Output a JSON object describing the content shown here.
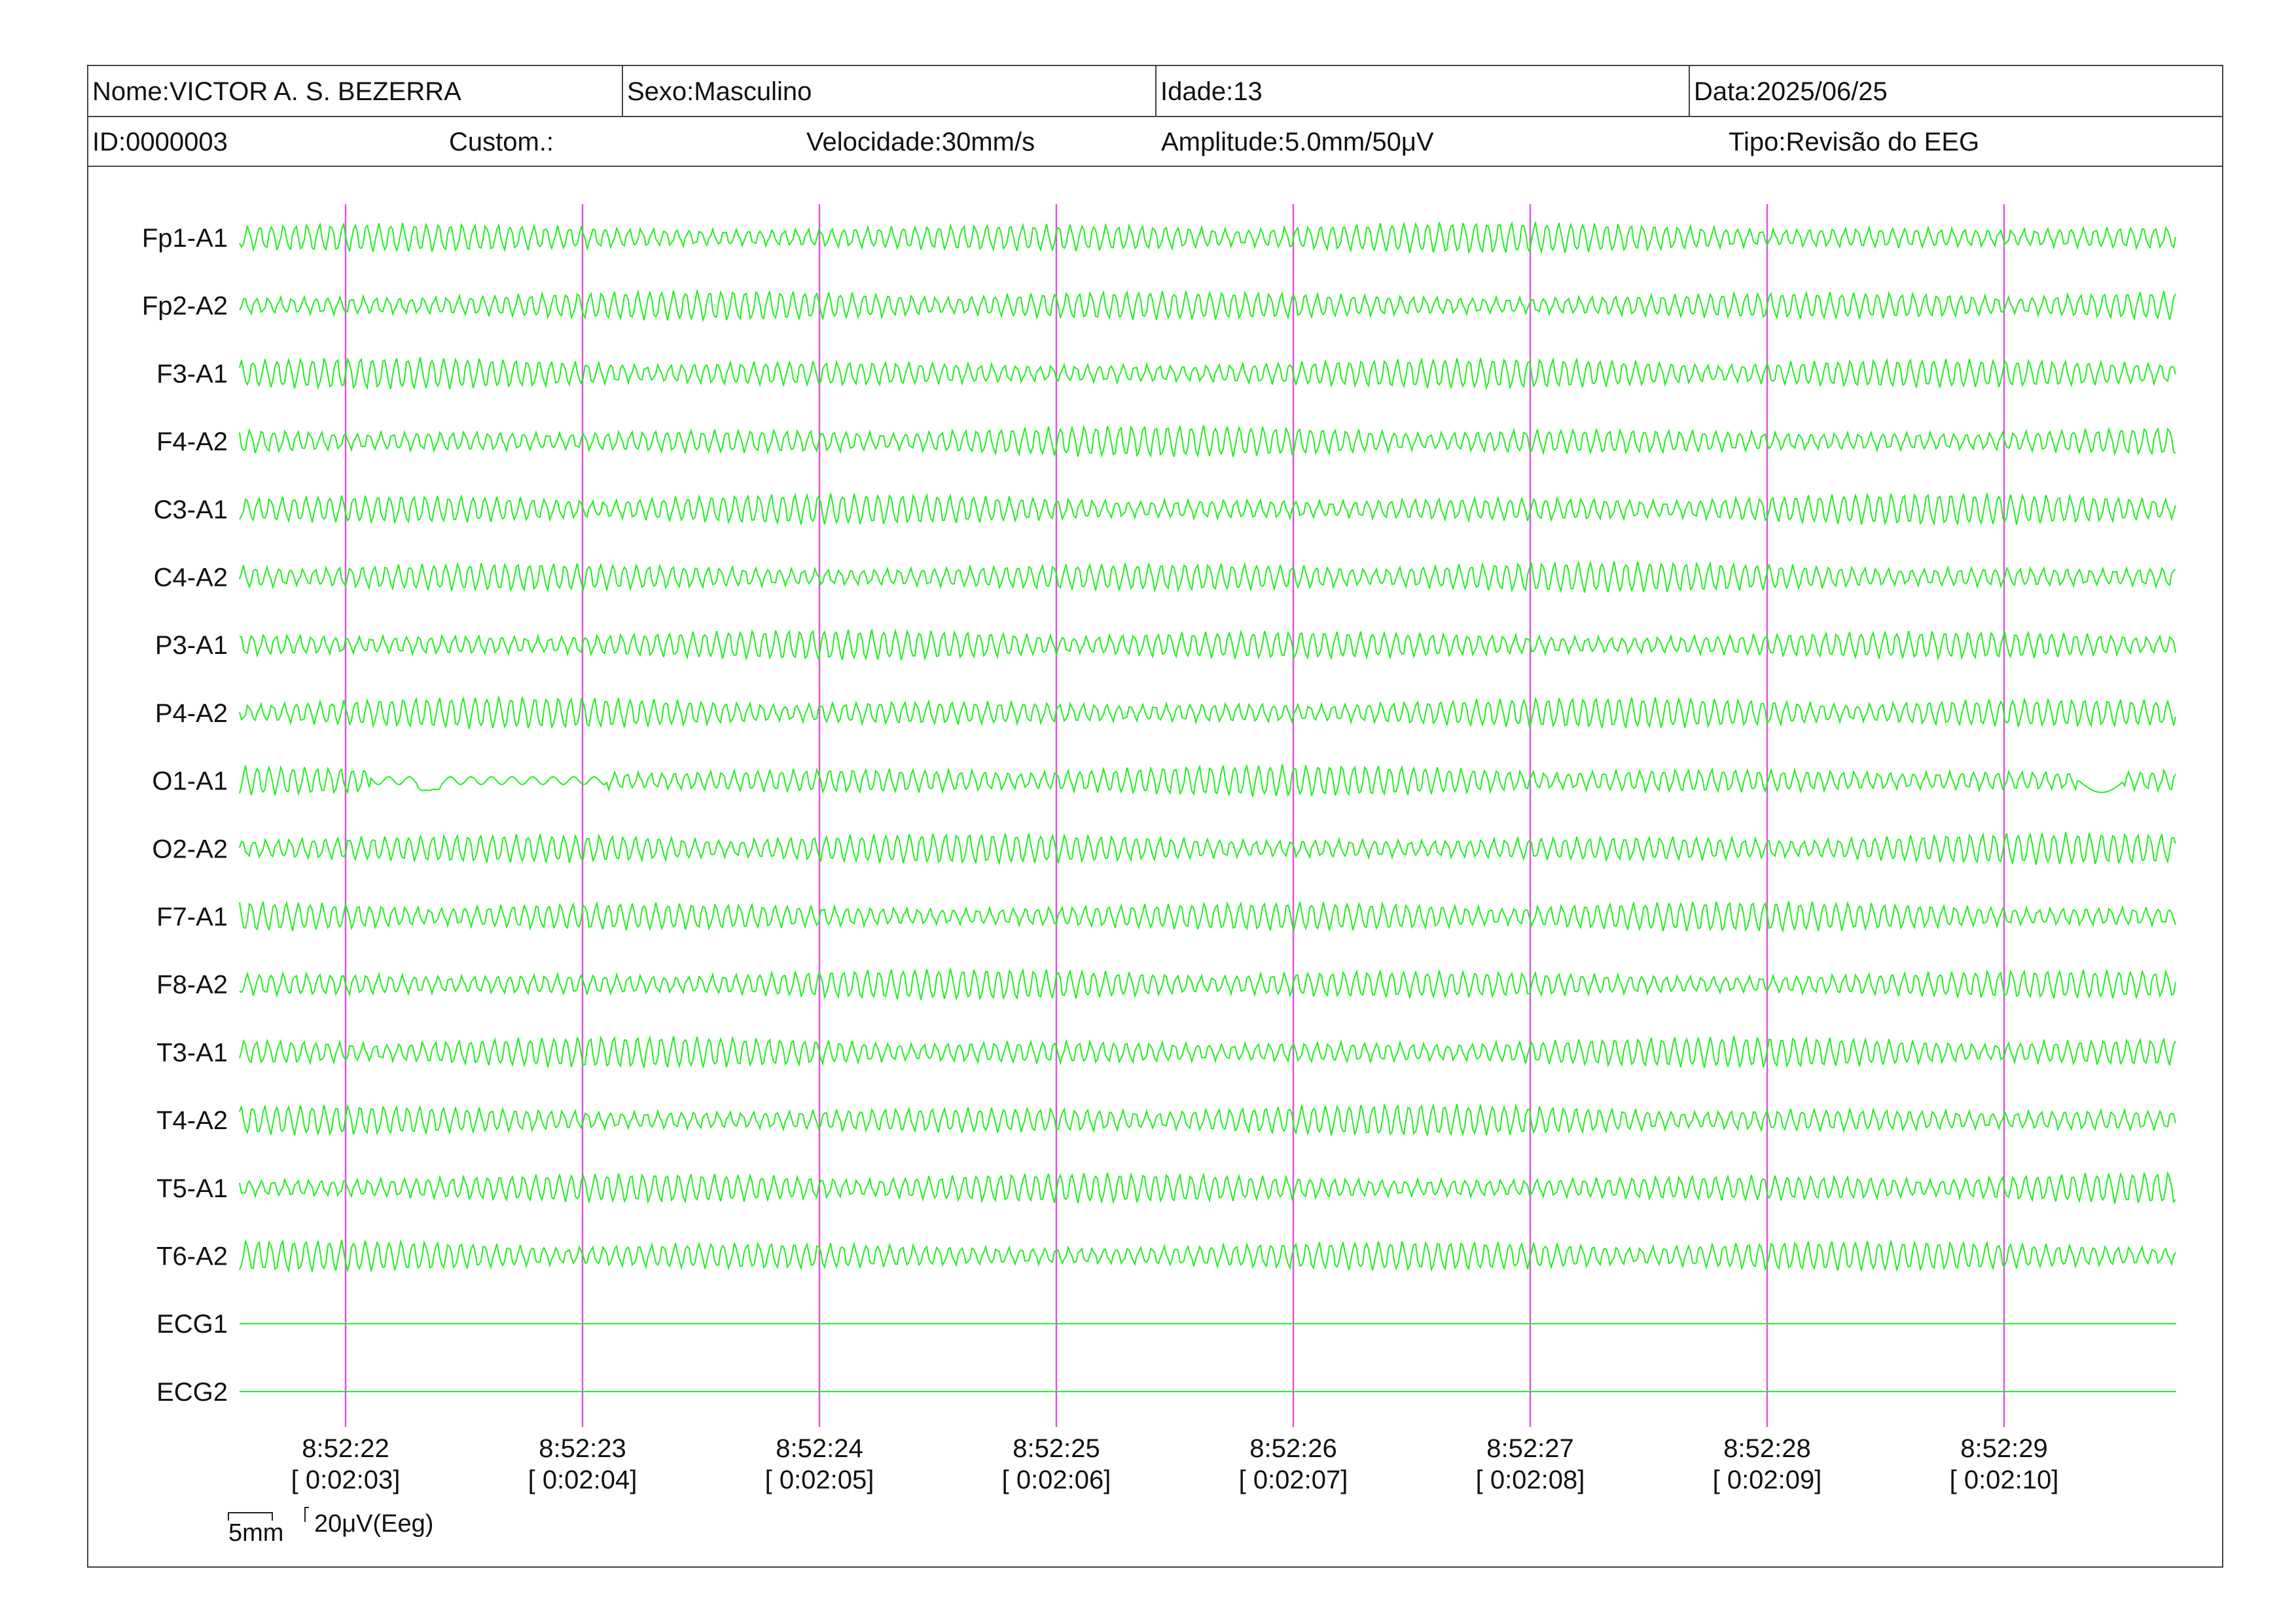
{
  "header": {
    "name": "Nome:VICTOR A. S. BEZERRA",
    "sex": "Sexo:Masculino",
    "age": "Idade:13",
    "date": "Data:2025/06/25",
    "id": "ID:0000003",
    "custom": "Custom.:",
    "speed": "Velocidade:30mm/s",
    "amplitude": "Amplitude:5.0mm/50μV",
    "type": "Tipo:Revisão do EEG"
  },
  "channels": [
    {
      "label": "Fp1-A1",
      "kind": "eeg"
    },
    {
      "label": "Fp2-A2",
      "kind": "eeg"
    },
    {
      "label": "F3-A1",
      "kind": "eeg"
    },
    {
      "label": "F4-A2",
      "kind": "eeg"
    },
    {
      "label": "C3-A1",
      "kind": "eeg"
    },
    {
      "label": "C4-A2",
      "kind": "eeg"
    },
    {
      "label": "P3-A1",
      "kind": "eeg"
    },
    {
      "label": "P4-A2",
      "kind": "eeg"
    },
    {
      "label": "O1-A1",
      "kind": "eeg"
    },
    {
      "label": "O2-A2",
      "kind": "eeg"
    },
    {
      "label": "F7-A1",
      "kind": "eeg"
    },
    {
      "label": "F8-A2",
      "kind": "eeg"
    },
    {
      "label": "T3-A1",
      "kind": "eeg"
    },
    {
      "label": "T4-A2",
      "kind": "eeg"
    },
    {
      "label": "T5-A1",
      "kind": "eeg"
    },
    {
      "label": "T6-A2",
      "kind": "eeg"
    },
    {
      "label": "ECG1",
      "kind": "flat"
    },
    {
      "label": "ECG2",
      "kind": "flat"
    }
  ],
  "time_marks": [
    {
      "clock": "8:52:22",
      "elapsed": "[ 0:02:03]"
    },
    {
      "clock": "8:52:23",
      "elapsed": "[ 0:02:04]"
    },
    {
      "clock": "8:52:24",
      "elapsed": "[ 0:02:05]"
    },
    {
      "clock": "8:52:25",
      "elapsed": "[ 0:02:06]"
    },
    {
      "clock": "8:52:26",
      "elapsed": "[ 0:02:07]"
    },
    {
      "clock": "8:52:27",
      "elapsed": "[ 0:02:08]"
    },
    {
      "clock": "8:52:28",
      "elapsed": "[ 0:02:09]"
    },
    {
      "clock": "8:52:29",
      "elapsed": "[ 0:02:10]"
    }
  ],
  "scale_bar": {
    "time": "5mm",
    "amplitude": "20μV(Eeg)"
  },
  "colors": {
    "trace": "#22ee22",
    "marker": "#dd55dd",
    "border": "#444444"
  }
}
